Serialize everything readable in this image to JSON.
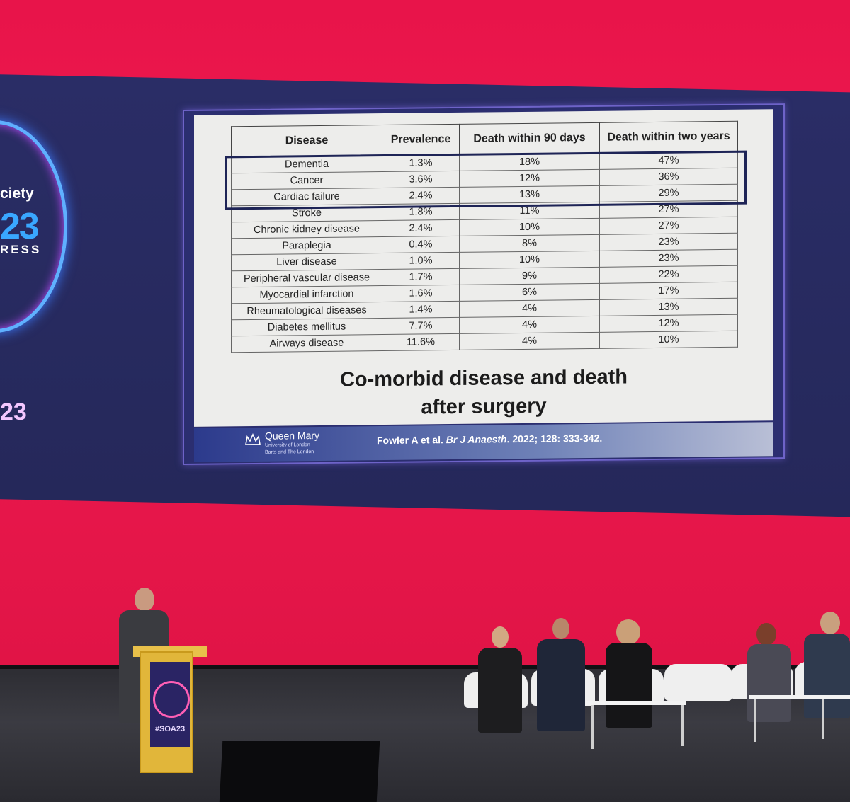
{
  "conference": {
    "ring_line1": "ciety",
    "ring_line2": "23",
    "ring_line3": "RESS",
    "side_year": "23",
    "podium_tag": "#SOA23"
  },
  "slide": {
    "columns": [
      "Disease",
      "Prevalence",
      "Death within 90 days",
      "Death within two years"
    ],
    "rows": [
      {
        "disease": "Dementia",
        "prevalence": "1.3%",
        "death_90_days": "18%",
        "death_two_years": "47%"
      },
      {
        "disease": "Cancer",
        "prevalence": "3.6%",
        "death_90_days": "12%",
        "death_two_years": "36%"
      },
      {
        "disease": "Cardiac failure",
        "prevalence": "2.4%",
        "death_90_days": "13%",
        "death_two_years": "29%"
      },
      {
        "disease": "Stroke",
        "prevalence": "1.8%",
        "death_90_days": "11%",
        "death_two_years": "27%"
      },
      {
        "disease": "Chronic kidney disease",
        "prevalence": "2.4%",
        "death_90_days": "10%",
        "death_two_years": "27%"
      },
      {
        "disease": "Paraplegia",
        "prevalence": "0.4%",
        "death_90_days": "8%",
        "death_two_years": "23%"
      },
      {
        "disease": "Liver disease",
        "prevalence": "1.0%",
        "death_90_days": "10%",
        "death_two_years": "23%"
      },
      {
        "disease": "Peripheral vascular disease",
        "prevalence": "1.7%",
        "death_90_days": "9%",
        "death_two_years": "22%"
      },
      {
        "disease": "Myocardial infarction",
        "prevalence": "1.6%",
        "death_90_days": "6%",
        "death_two_years": "17%"
      },
      {
        "disease": "Rheumatological diseases",
        "prevalence": "1.4%",
        "death_90_days": "4%",
        "death_two_years": "13%"
      },
      {
        "disease": "Diabetes mellitus",
        "prevalence": "7.7%",
        "death_90_days": "4%",
        "death_two_years": "12%"
      },
      {
        "disease": "Airways disease",
        "prevalence": "11.6%",
        "death_90_days": "4%",
        "death_two_years": "10%"
      }
    ],
    "title_line1": "Co-morbid disease and death",
    "title_line2": "after surgery",
    "footer": {
      "institution": "Queen Mary",
      "institution_sub": "University of London",
      "institution_sub2": "Barts and The London",
      "citation_authors": "Fowler A et al.",
      "citation_journal": "Br J Anaesth",
      "citation_rest": ". 2022; 128: 333-342."
    }
  },
  "colors": {
    "wall": "#ef1a4f",
    "screen": "#2a2d66",
    "highlight_box": "#1e2456",
    "podium": "#e1b63a"
  }
}
